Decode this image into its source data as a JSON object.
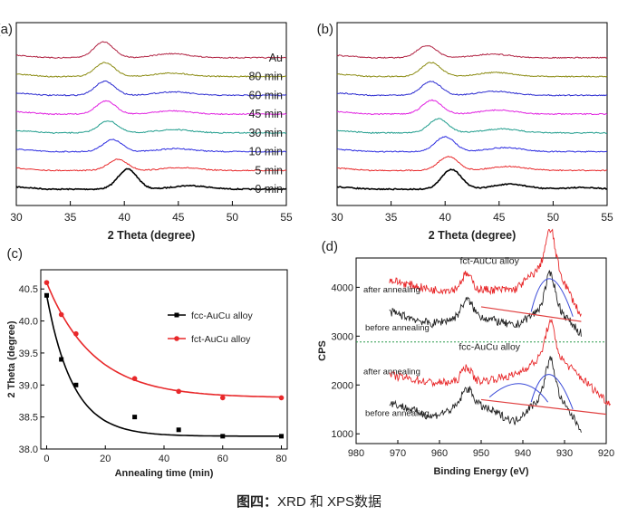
{
  "caption": {
    "bold": "图四：",
    "text": "XRD 和 XPS数据"
  },
  "chart_data": [
    {
      "panel": "(a)",
      "type": "line",
      "xlabel": "2 Theta (degree)",
      "ylabel": "",
      "xlim": [
        30,
        55
      ],
      "xticks": [
        30,
        35,
        40,
        45,
        50,
        55
      ],
      "series": [
        {
          "name": "0 min",
          "color": "#000000",
          "peaks": [
            [
              40.3,
              1.0
            ],
            [
              46.1,
              0.18
            ]
          ]
        },
        {
          "name": "5 min",
          "color": "#e8282a",
          "peaks": [
            [
              39.4,
              0.55
            ],
            [
              45.2,
              0.14
            ]
          ]
        },
        {
          "name": "10 min",
          "color": "#2a2ae0",
          "peaks": [
            [
              38.9,
              0.6
            ],
            [
              44.8,
              0.15
            ]
          ]
        },
        {
          "name": "30 min",
          "color": "#1e9c8c",
          "peaks": [
            [
              38.5,
              0.6
            ],
            [
              44.6,
              0.16
            ]
          ]
        },
        {
          "name": "45 min",
          "color": "#e020e0",
          "peaks": [
            [
              38.3,
              0.65
            ],
            [
              44.5,
              0.16
            ]
          ]
        },
        {
          "name": "60 min",
          "color": "#2a2ad0",
          "peaks": [
            [
              38.2,
              0.7
            ],
            [
              44.5,
              0.17
            ]
          ]
        },
        {
          "name": "80 min",
          "color": "#8a8a10",
          "peaks": [
            [
              38.2,
              0.7
            ],
            [
              44.4,
              0.17
            ]
          ]
        },
        {
          "name": "Au",
          "color": "#b02040",
          "peaks": [
            [
              38.1,
              0.8
            ],
            [
              44.4,
              0.2
            ]
          ]
        }
      ]
    },
    {
      "panel": "(b)",
      "type": "line",
      "xlabel": "2 Theta (degree)",
      "ylabel": "",
      "xlim": [
        30,
        55
      ],
      "xticks": [
        30,
        35,
        40,
        45,
        50,
        55
      ],
      "series": [
        {
          "name": "0 min",
          "color": "#000000",
          "peaks": [
            [
              40.6,
              1.0
            ],
            [
              46.0,
              0.25
            ],
            [
              52.5,
              0.08
            ]
          ]
        },
        {
          "name": "5 min",
          "color": "#e8282a",
          "peaks": [
            [
              40.3,
              0.7
            ],
            [
              45.8,
              0.2
            ]
          ]
        },
        {
          "name": "10 min",
          "color": "#2a2ae0",
          "peaks": [
            [
              40.0,
              0.75
            ],
            [
              45.5,
              0.2
            ]
          ]
        },
        {
          "name": "30 min",
          "color": "#1e9c8c",
          "peaks": [
            [
              39.4,
              0.7
            ],
            [
              45.2,
              0.2
            ]
          ]
        },
        {
          "name": "45 min",
          "color": "#e020e0",
          "peaks": [
            [
              38.8,
              0.7
            ],
            [
              44.9,
              0.2
            ]
          ]
        },
        {
          "name": "60 min",
          "color": "#2a2ad0",
          "peaks": [
            [
              38.7,
              0.7
            ],
            [
              44.7,
              0.2
            ]
          ]
        },
        {
          "name": "80 min",
          "color": "#8a8a10",
          "peaks": [
            [
              38.7,
              0.7
            ],
            [
              44.6,
              0.2
            ]
          ]
        },
        {
          "name": "Au",
          "color": "#b02040",
          "peaks": [
            [
              38.3,
              0.6
            ],
            [
              44.4,
              0.18
            ]
          ]
        }
      ]
    },
    {
      "panel": "(c)",
      "type": "scatter",
      "xlabel": "Annealing time (min)",
      "ylabel": "2 Theta (degree)",
      "xlim": [
        -2,
        82
      ],
      "ylim": [
        38.0,
        40.8
      ],
      "xticks": [
        0,
        20,
        40,
        60,
        80
      ],
      "yticks": [
        38.0,
        38.5,
        39.0,
        39.5,
        40.0,
        40.5
      ],
      "legend_position": "center-right",
      "series": [
        {
          "name": "fcc-AuCu alloy",
          "color": "#000000",
          "marker": "square",
          "x": [
            0,
            5,
            10,
            30,
            45,
            60,
            80
          ],
          "y": [
            40.4,
            39.4,
            39.0,
            38.5,
            38.3,
            38.2,
            38.2
          ],
          "fit": {
            "y0": 38.2,
            "A": 2.2,
            "tau": 9
          }
        },
        {
          "name": "fct-AuCu alloy",
          "color": "#e8282a",
          "marker": "circle",
          "x": [
            0,
            5,
            10,
            30,
            45,
            60,
            80
          ],
          "y": [
            40.6,
            40.1,
            39.8,
            39.1,
            38.9,
            38.8,
            38.8
          ],
          "fit": {
            "y0": 38.8,
            "A": 1.8,
            "tau": 16
          }
        }
      ]
    },
    {
      "panel": "(d)",
      "type": "line",
      "xlabel": "Binding Energy (eV)",
      "ylabel": "CPS",
      "xlim": [
        980,
        920
      ],
      "ylim": [
        800,
        4600
      ],
      "xticks": [
        980,
        970,
        960,
        950,
        940,
        930,
        920
      ],
      "yticks": [
        1000,
        2000,
        3000,
        4000
      ],
      "annotations": [
        "fct-AuCu alloy",
        "fcc-AuCu alloy",
        "after annealing",
        "before annealing",
        "after annealing",
        "before annealing"
      ],
      "divider_y": 2880,
      "series": [
        {
          "name": "fct after annealing",
          "color": "#e8282a",
          "x": [
            972,
            962,
            952,
            942,
            933,
            926
          ],
          "y": [
            4150,
            3950,
            3950,
            3950,
            4600,
            3400
          ]
        },
        {
          "name": "fct before annealing",
          "color": "#222222",
          "x": [
            972,
            962,
            952,
            942,
            933,
            926
          ],
          "y": [
            3500,
            3250,
            3450,
            3200,
            3700,
            3050
          ]
        },
        {
          "name": "fcc after annealing",
          "color": "#e8282a",
          "x": [
            972,
            962,
            952,
            942,
            933,
            919
          ],
          "y": [
            2200,
            2050,
            2050,
            2200,
            2700,
            1600
          ]
        },
        {
          "name": "fcc before annealing",
          "color": "#222222",
          "x": [
            972,
            962,
            952,
            942,
            933,
            926
          ],
          "y": [
            1650,
            1350,
            1650,
            1250,
            1950,
            1100
          ]
        }
      ]
    }
  ]
}
